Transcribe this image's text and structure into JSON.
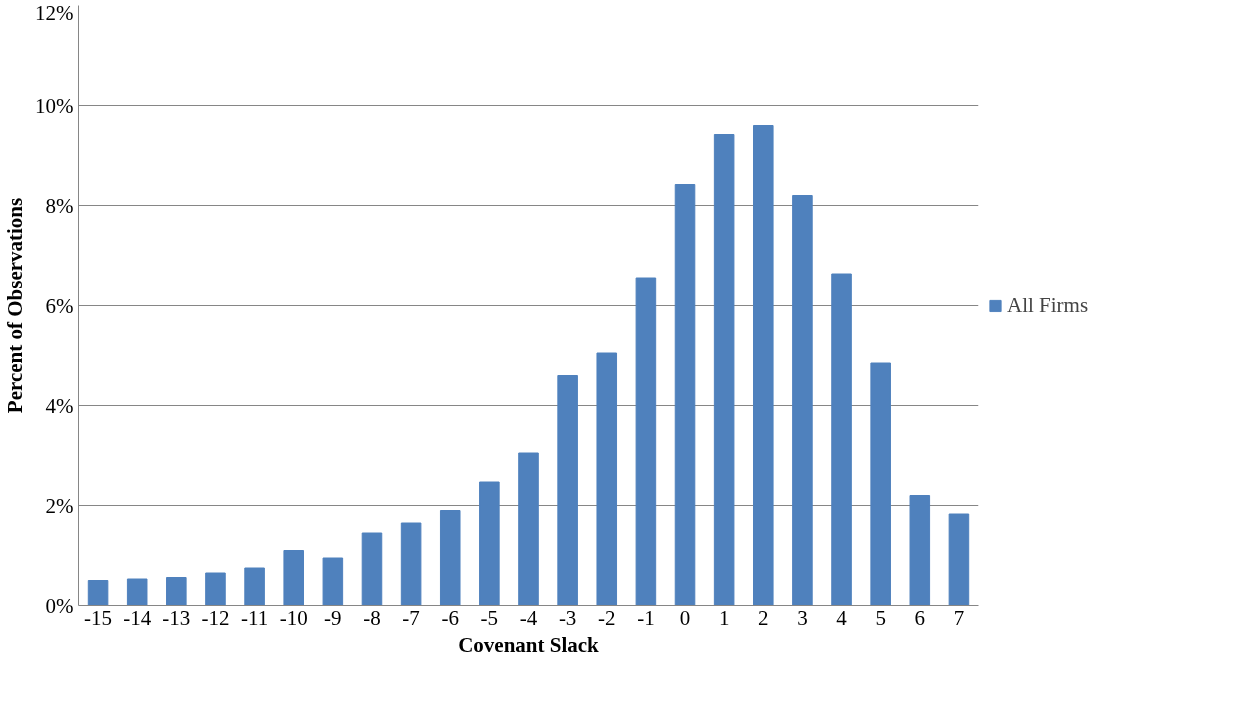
{
  "chart_data": {
    "type": "bar",
    "xlabel": "Covenant Slack",
    "ylabel": "Percent of Observations",
    "categories": [
      "-15",
      "-14",
      "-13",
      "-12",
      "-11",
      "-10",
      "-9",
      "-8",
      "-7",
      "-6",
      "-5",
      "-4",
      "-3",
      "-2",
      "-1",
      "0",
      "1",
      "2",
      "3",
      "4",
      "5",
      "6",
      "7"
    ],
    "series": [
      {
        "name": "All Firms",
        "color": "#4f81bd",
        "values": [
          0.5,
          0.53,
          0.56,
          0.65,
          0.75,
          1.1,
          0.95,
          1.45,
          1.65,
          1.9,
          2.47,
          3.05,
          4.6,
          5.05,
          6.55,
          8.42,
          9.42,
          9.6,
          8.2,
          6.63,
          4.85,
          2.2,
          1.83
        ]
      }
    ],
    "ylim": [
      0,
      12
    ],
    "yticks": [
      {
        "value": 0,
        "label": "0%"
      },
      {
        "value": 2,
        "label": "2%"
      },
      {
        "value": 4,
        "label": "4%"
      },
      {
        "value": 6,
        "label": "6%"
      },
      {
        "value": 8,
        "label": "8%"
      },
      {
        "value": 10,
        "label": "10%"
      },
      {
        "value": 12,
        "label": "12%"
      }
    ],
    "grid": "y",
    "legend": "right"
  }
}
